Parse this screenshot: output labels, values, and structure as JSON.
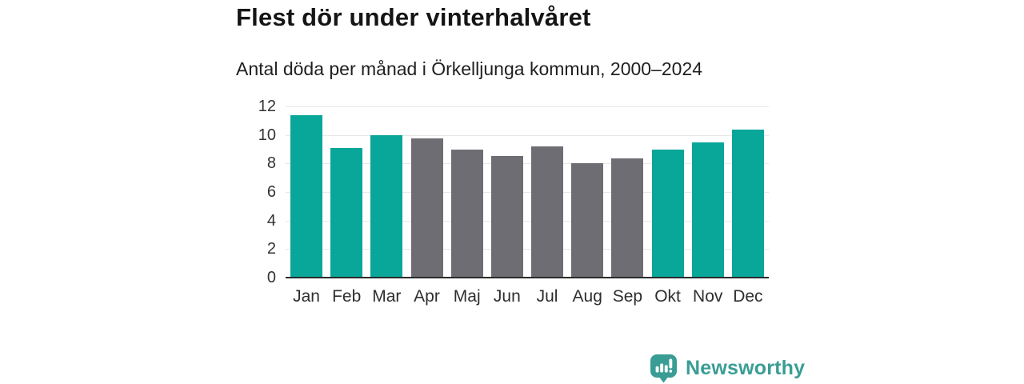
{
  "header": {
    "title": "Flest dör under vinterhalvåret",
    "subtitle": "Antal döda per månad i Örkelljunga kommun, 2000–2024"
  },
  "chart_data": {
    "type": "bar",
    "title": "Flest dör under vinterhalvåret",
    "subtitle": "Antal döda per månad i Örkelljunga kommun, 2000–2024",
    "categories": [
      "Jan",
      "Feb",
      "Mar",
      "Apr",
      "Maj",
      "Jun",
      "Jul",
      "Aug",
      "Sep",
      "Okt",
      "Nov",
      "Dec"
    ],
    "values": [
      11.4,
      9.1,
      10.0,
      9.75,
      8.95,
      8.55,
      9.2,
      8.0,
      8.35,
      9.0,
      9.5,
      10.4
    ],
    "highlighted": [
      true,
      true,
      true,
      false,
      false,
      false,
      false,
      false,
      false,
      true,
      true,
      true
    ],
    "xlabel": "",
    "ylabel": "",
    "ylim": [
      0,
      12
    ],
    "yticks": [
      0,
      2,
      4,
      6,
      8,
      10,
      12
    ],
    "grid": true,
    "legend": "none",
    "colors": {
      "highlight": "#09a69a",
      "muted": "#6e6d73"
    }
  },
  "footer": {
    "brand": "Newsworthy",
    "brand_color": "#3a9d95",
    "logo_icon": "speech-bubble-bar-chart-exclamation"
  }
}
